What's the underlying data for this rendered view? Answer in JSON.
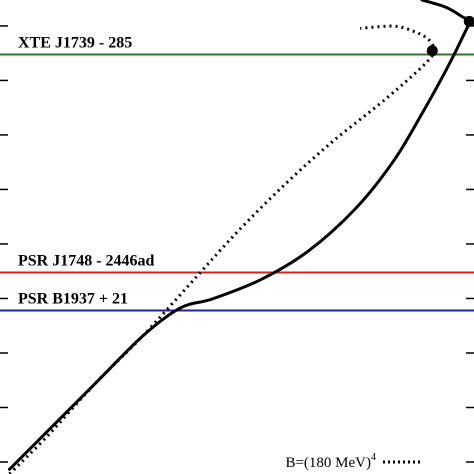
{
  "chart_data": {
    "type": "line",
    "series": [
      {
        "style": "solid",
        "color": "#000000",
        "points": [
          [
            0.02,
            0.01
          ],
          [
            0.1,
            0.09
          ],
          [
            0.2,
            0.19
          ],
          [
            0.3,
            0.29
          ],
          [
            0.38,
            0.35
          ],
          [
            0.45,
            0.37
          ],
          [
            0.55,
            0.41
          ],
          [
            0.65,
            0.47
          ],
          [
            0.75,
            0.56
          ],
          [
            0.83,
            0.66
          ],
          [
            0.89,
            0.76
          ],
          [
            0.94,
            0.85
          ],
          [
            0.98,
            0.93
          ],
          [
            0.99,
            0.955
          ],
          [
            0.975,
            0.965
          ],
          [
            0.94,
            0.985
          ],
          [
            0.89,
            1.0
          ]
        ],
        "max_point": [
          0.99,
          0.955
        ]
      },
      {
        "style": "dotted",
        "color": "#000000",
        "name_prefix": "B=(180 MeV)",
        "name_exp": "4",
        "points": [
          [
            0.02,
            0.0
          ],
          [
            0.1,
            0.08
          ],
          [
            0.2,
            0.19
          ],
          [
            0.3,
            0.29
          ],
          [
            0.4,
            0.4
          ],
          [
            0.5,
            0.51
          ],
          [
            0.6,
            0.61
          ],
          [
            0.7,
            0.7
          ],
          [
            0.8,
            0.78
          ],
          [
            0.87,
            0.84
          ],
          [
            0.91,
            0.88
          ],
          [
            0.915,
            0.9
          ],
          [
            0.9,
            0.92
          ],
          [
            0.87,
            0.935
          ],
          [
            0.83,
            0.945
          ],
          [
            0.76,
            0.94
          ]
        ],
        "max_point": [
          0.912,
          0.893
        ]
      }
    ],
    "hlines": [
      {
        "label": "XTE J1739 - 285",
        "y": 0.885,
        "color": "#2a7a2a"
      },
      {
        "label": "PSR J1748 - 2446ad",
        "y": 0.425,
        "color": "#dd2222"
      },
      {
        "label": "PSR B1937 + 21",
        "y": 0.345,
        "color": "#1f1fa8"
      }
    ],
    "xlim": [
      0,
      1
    ],
    "ylim": [
      0,
      1
    ],
    "left_ticks": [
      0.0,
      0.115,
      0.23,
      0.345,
      0.46,
      0.575,
      0.69,
      0.805,
      0.92
    ],
    "right_ticks": [
      0.0,
      0.115,
      0.23,
      0.345,
      0.46,
      0.575,
      0.69,
      0.805,
      0.92
    ]
  }
}
